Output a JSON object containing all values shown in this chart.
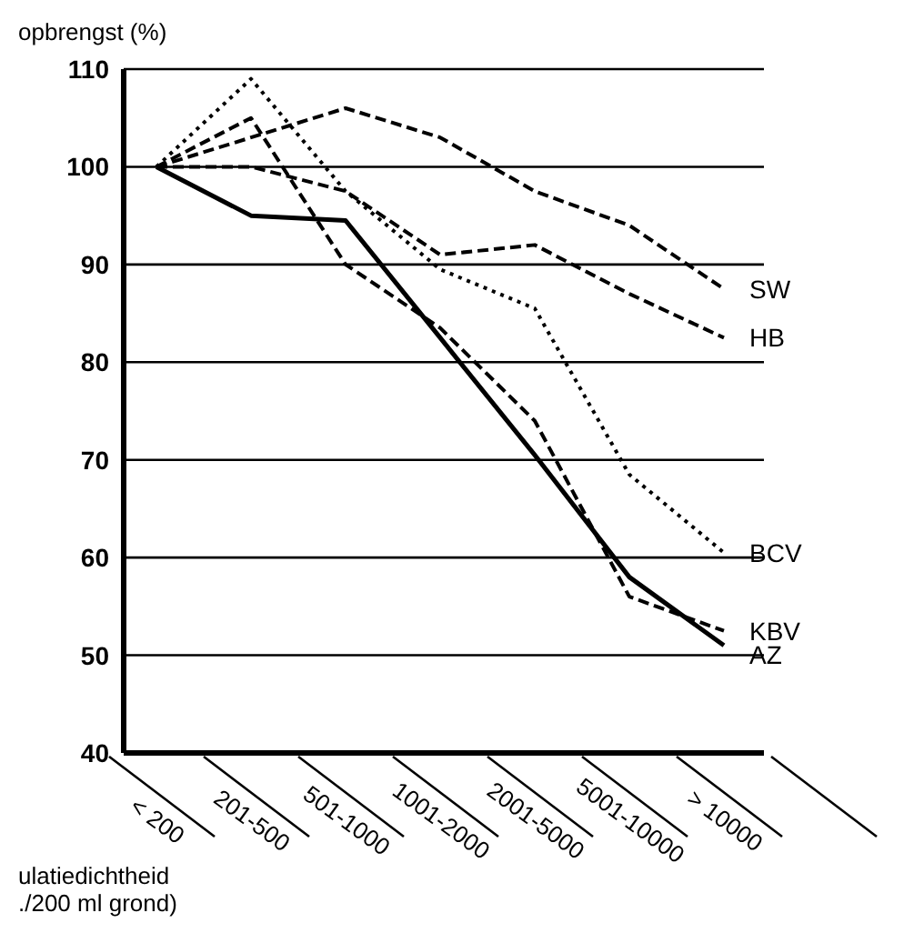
{
  "chart_data": {
    "type": "line",
    "ylabel": "opbrengst (%)",
    "xlabel": "ulatiedichtheid\n./200 ml grond)",
    "categories": [
      "< 200",
      "201-500",
      "501-1000",
      "1001-2000",
      "2001-5000",
      "5001-10000",
      "> 10000"
    ],
    "series": [
      {
        "name": "SW",
        "color": "#000000",
        "line_style": "dashed",
        "values": [
          100,
          103,
          106,
          103,
          97.5,
          94,
          87.5
        ]
      },
      {
        "name": "HB",
        "color": "#000000",
        "line_style": "dashed",
        "values": [
          100,
          100,
          97.5,
          91,
          92,
          87,
          82.5
        ]
      },
      {
        "name": "BCV",
        "color": "#000000",
        "line_style": "dotted",
        "values": [
          100,
          109,
          97.5,
          89.5,
          85.5,
          68.5,
          60.5
        ]
      },
      {
        "name": "KBV",
        "color": "#000000",
        "line_style": "dashed",
        "values": [
          100,
          105,
          90,
          83.5,
          74,
          56,
          52.5
        ]
      },
      {
        "name": "AZ",
        "color": "#000000",
        "line_style": "solid",
        "values": [
          100,
          95,
          94.5,
          82.5,
          70.5,
          58,
          51
        ]
      }
    ],
    "ylim": [
      40,
      110
    ],
    "yticks": [
      40,
      50,
      60,
      70,
      80,
      90,
      100,
      110
    ],
    "grid": "y",
    "legend": false,
    "marker": "none"
  }
}
